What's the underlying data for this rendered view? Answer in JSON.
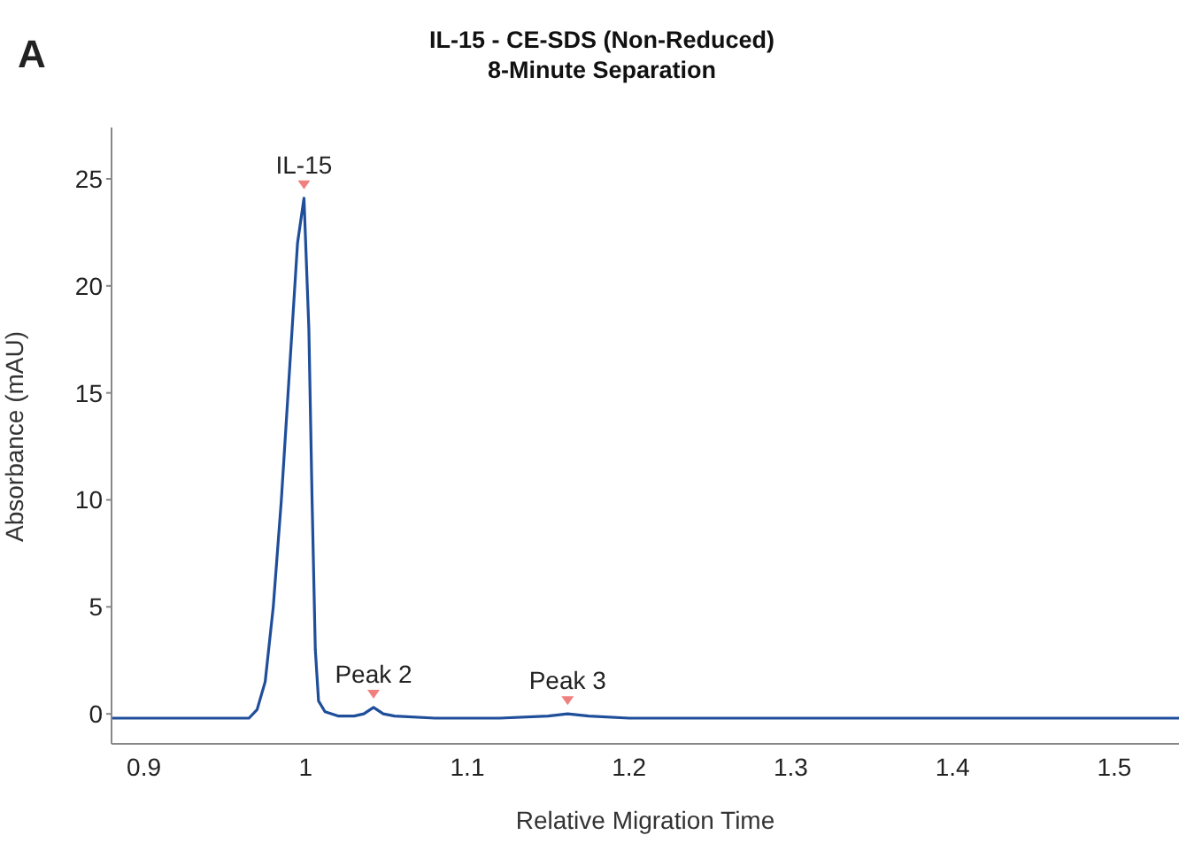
{
  "chart_data": {
    "type": "line",
    "title": "IL-15 - CE-SDS (Non-Reduced)",
    "subtitle": "8-Minute Separation",
    "xlabel": "Relative Migration Time",
    "ylabel": "Absorbance (mAU)",
    "x": [
      0.88,
      0.95,
      0.965,
      0.97,
      0.975,
      0.98,
      0.985,
      0.99,
      0.995,
      0.999,
      1.002,
      1.004,
      1.006,
      1.008,
      1.012,
      1.02,
      1.03,
      1.036,
      1.042,
      1.048,
      1.055,
      1.08,
      1.12,
      1.15,
      1.162,
      1.175,
      1.2,
      1.3,
      1.4,
      1.5,
      1.54
    ],
    "series": [
      {
        "color": "#1f4e9a",
        "values": [
          -0.2,
          -0.2,
          -0.2,
          0.2,
          1.5,
          5,
          10,
          16,
          22,
          24.1,
          18,
          10,
          3,
          0.6,
          0.1,
          -0.1,
          -0.1,
          0,
          0.3,
          0,
          -0.1,
          -0.2,
          -0.2,
          -0.1,
          0,
          -0.1,
          -0.2,
          -0.2,
          -0.2,
          -0.2,
          -0.2
        ]
      }
    ],
    "xlim": [
      0.88,
      1.54
    ],
    "xticks": [
      0.9,
      1,
      1.1,
      1.2,
      1.3,
      1.4,
      1.5
    ],
    "ylim": [
      -1.4,
      27.4
    ],
    "yticks": [
      0,
      5,
      10,
      15,
      20,
      25
    ],
    "grid": false,
    "legend": false,
    "marker": "none",
    "line_style": "solid",
    "annotations": [
      "A",
      {
        "text": "IL-15",
        "x": 0.999,
        "y": 24.1
      },
      {
        "text": "Peak 2",
        "x": 1.042,
        "y": 0.3
      },
      {
        "text": "Peak 3",
        "x": 1.162,
        "y": 0
      }
    ]
  }
}
